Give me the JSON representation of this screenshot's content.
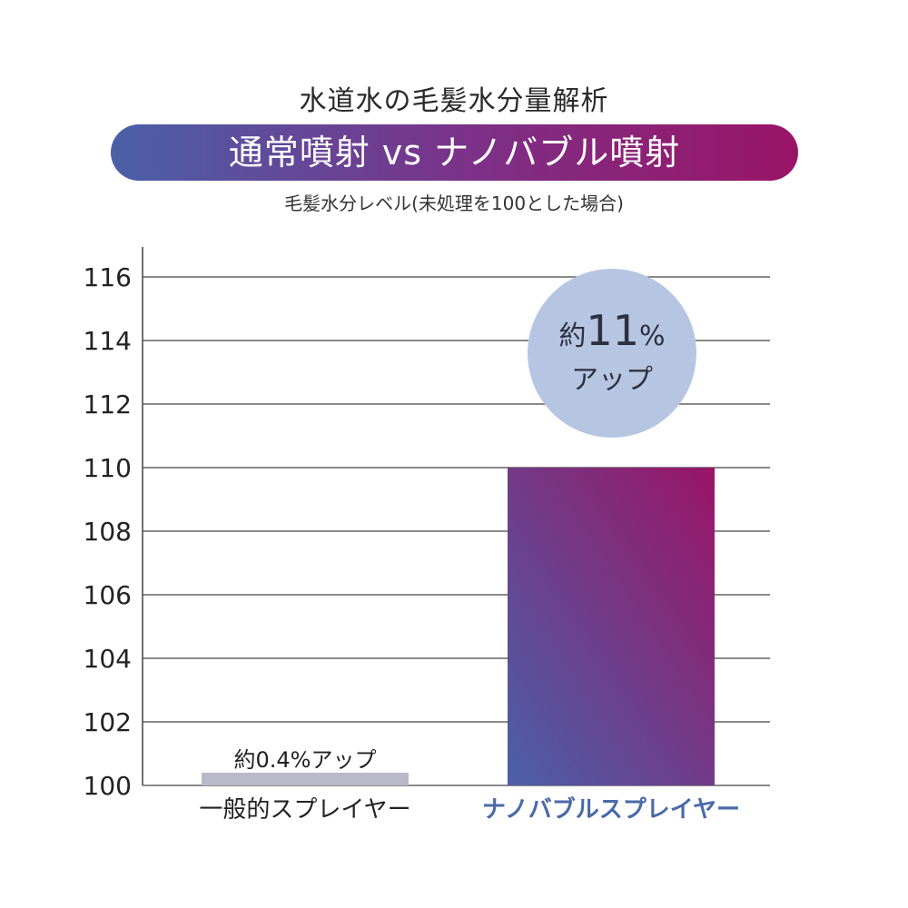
{
  "header": {
    "title": "水道水の毛髪水分量解析",
    "banner": "通常噴射 vs ナノバブル噴射",
    "subtitle": "毛髪水分レベル(未処理を100とした場合)"
  },
  "colors": {
    "gradient_start": "#4a60a8",
    "gradient_end": "#9a1466",
    "bubble": "#b6c6e2",
    "nano_label": "#4a6aa8",
    "grid": "#444444"
  },
  "chart_data": {
    "type": "bar",
    "categories": [
      "一般的スプレイヤー",
      "ナノバブルスプレイヤー"
    ],
    "values": [
      100.4,
      110
    ],
    "ylim": [
      100,
      116
    ],
    "yticks": [
      100,
      102,
      104,
      106,
      108,
      110,
      112,
      114,
      116
    ],
    "grid": true,
    "annotations": [
      {
        "prefix": "約",
        "value": "0.4",
        "unit": "%",
        "suffix": "アップ"
      },
      {
        "prefix": "約",
        "value": "11",
        "unit": "%",
        "suffix": "アップ"
      }
    ]
  }
}
